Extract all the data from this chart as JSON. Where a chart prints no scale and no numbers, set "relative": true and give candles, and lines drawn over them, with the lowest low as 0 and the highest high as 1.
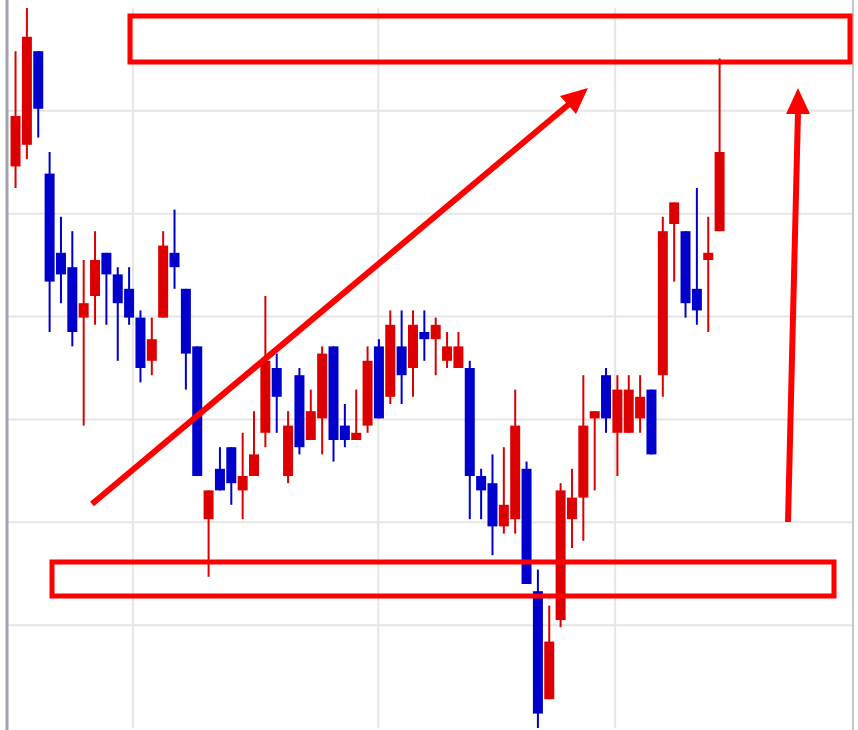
{
  "chart_data": {
    "type": "candlestick",
    "relative": true,
    "grid": true,
    "categories": [
      null,
      null,
      null,
      null,
      null,
      null,
      null,
      null,
      null,
      null,
      null,
      null,
      null,
      null,
      null,
      null,
      null,
      null,
      null,
      null,
      null,
      null,
      null,
      null,
      null,
      null,
      null,
      null,
      null,
      null,
      null,
      null,
      null,
      null,
      null,
      null,
      null,
      null,
      null,
      null,
      null,
      null,
      null,
      null,
      null,
      null,
      null,
      null,
      null,
      null,
      null,
      null,
      null,
      null,
      null,
      null,
      null,
      null,
      null,
      null,
      null,
      null,
      null
    ],
    "ohlc": [
      [
        0.78,
        0.94,
        0.75,
        0.85
      ],
      [
        0.81,
        1.0,
        0.79,
        0.96
      ],
      [
        0.94,
        0.94,
        0.82,
        0.86
      ],
      [
        0.77,
        0.8,
        0.55,
        0.62
      ],
      [
        0.66,
        0.71,
        0.59,
        0.63
      ],
      [
        0.64,
        0.69,
        0.53,
        0.55
      ],
      [
        0.57,
        0.65,
        0.42,
        0.59
      ],
      [
        0.6,
        0.69,
        0.56,
        0.65
      ],
      [
        0.66,
        0.66,
        0.56,
        0.63
      ],
      [
        0.63,
        0.64,
        0.51,
        0.59
      ],
      [
        0.61,
        0.64,
        0.56,
        0.57
      ],
      [
        0.57,
        0.58,
        0.48,
        0.5
      ],
      [
        0.51,
        0.57,
        0.49,
        0.54
      ],
      [
        0.57,
        0.69,
        0.57,
        0.67
      ],
      [
        0.66,
        0.72,
        0.61,
        0.64
      ],
      [
        0.61,
        0.61,
        0.47,
        0.52
      ],
      [
        0.53,
        0.53,
        0.35,
        0.35
      ],
      [
        0.29,
        0.33,
        0.21,
        0.33
      ],
      [
        0.36,
        0.39,
        0.33,
        0.33
      ],
      [
        0.39,
        0.39,
        0.31,
        0.34
      ],
      [
        0.33,
        0.41,
        0.29,
        0.35
      ],
      [
        0.35,
        0.44,
        0.35,
        0.38
      ],
      [
        0.41,
        0.6,
        0.39,
        0.51
      ],
      [
        0.5,
        0.52,
        0.41,
        0.46
      ],
      [
        0.35,
        0.44,
        0.34,
        0.42
      ],
      [
        0.49,
        0.5,
        0.38,
        0.39
      ],
      [
        0.4,
        0.47,
        0.4,
        0.44
      ],
      [
        0.43,
        0.53,
        0.38,
        0.52
      ],
      [
        0.53,
        0.53,
        0.37,
        0.4
      ],
      [
        0.42,
        0.45,
        0.39,
        0.4
      ],
      [
        0.4,
        0.47,
        0.4,
        0.41
      ],
      [
        0.42,
        0.53,
        0.41,
        0.51
      ],
      [
        0.53,
        0.54,
        0.43,
        0.43
      ],
      [
        0.46,
        0.58,
        0.45,
        0.56
      ],
      [
        0.53,
        0.58,
        0.45,
        0.49
      ],
      [
        0.5,
        0.58,
        0.46,
        0.56
      ],
      [
        0.55,
        0.58,
        0.51,
        0.54
      ],
      [
        0.54,
        0.57,
        0.49,
        0.56
      ],
      [
        0.51,
        0.55,
        0.5,
        0.53
      ],
      [
        0.5,
        0.55,
        0.5,
        0.53
      ],
      [
        0.5,
        0.51,
        0.29,
        0.35
      ],
      [
        0.35,
        0.36,
        0.29,
        0.33
      ],
      [
        0.34,
        0.38,
        0.24,
        0.28
      ],
      [
        0.28,
        0.39,
        0.27,
        0.31
      ],
      [
        0.29,
        0.47,
        0.27,
        0.42
      ],
      [
        0.36,
        0.37,
        0.2,
        0.2
      ],
      [
        0.19,
        0.22,
        0.0,
        0.02
      ],
      [
        0.04,
        0.17,
        0.04,
        0.12
      ],
      [
        0.15,
        0.34,
        0.14,
        0.33
      ],
      [
        0.29,
        0.36,
        0.25,
        0.32
      ],
      [
        0.32,
        0.49,
        0.26,
        0.42
      ],
      [
        0.43,
        0.44,
        0.33,
        0.44
      ],
      [
        0.49,
        0.5,
        0.41,
        0.43
      ],
      [
        0.41,
        0.49,
        0.35,
        0.47
      ],
      [
        0.41,
        0.49,
        0.41,
        0.47
      ],
      [
        0.43,
        0.49,
        0.41,
        0.46
      ],
      [
        0.47,
        0.47,
        0.38,
        0.38
      ],
      [
        0.49,
        0.71,
        0.46,
        0.69
      ],
      [
        0.7,
        0.73,
        0.62,
        0.73
      ],
      [
        0.69,
        0.69,
        0.57,
        0.59
      ],
      [
        0.61,
        0.75,
        0.56,
        0.58
      ],
      [
        0.65,
        0.71,
        0.55,
        0.66
      ],
      [
        0.69,
        0.93,
        0.69,
        0.8
      ]
    ],
    "colors": [
      "#dd0000",
      "#dd0000",
      "#0000cc",
      "#0000cc",
      "#0000cc",
      "#0000cc",
      "#dd0000",
      "#dd0000",
      "#0000cc",
      "#0000cc",
      "#0000cc",
      "#0000cc",
      "#dd0000",
      "#dd0000",
      "#0000cc",
      "#0000cc",
      "#0000cc",
      "#dd0000",
      "#0000cc",
      "#0000cc",
      "#dd0000",
      "#dd0000",
      "#dd0000",
      "#0000cc",
      "#dd0000",
      "#0000cc",
      "#dd0000",
      "#dd0000",
      "#0000cc",
      "#0000cc",
      "#dd0000",
      "#dd0000",
      "#0000cc",
      "#dd0000",
      "#0000cc",
      "#dd0000",
      "#0000cc",
      "#dd0000",
      "#dd0000",
      "#dd0000",
      "#0000cc",
      "#0000cc",
      "#0000cc",
      "#dd0000",
      "#dd0000",
      "#0000cc",
      "#0000cc",
      "#dd0000",
      "#dd0000",
      "#dd0000",
      "#dd0000",
      "#dd0000",
      "#0000cc",
      "#dd0000",
      "#dd0000",
      "#dd0000",
      "#0000cc",
      "#dd0000",
      "#dd0000",
      "#0000cc",
      "#0000cc",
      "#dd0000",
      "#dd0000"
    ]
  }
}
